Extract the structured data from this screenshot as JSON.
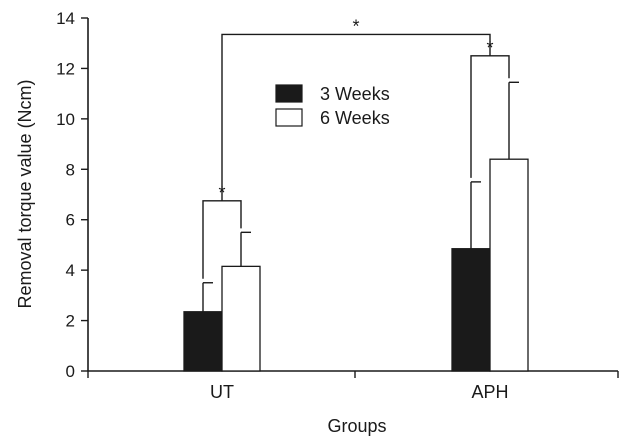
{
  "chart_data": {
    "type": "bar",
    "title": "",
    "xlabel": "Groups",
    "ylabel": "Removal torque value (Ncm)",
    "ylim": [
      0,
      14
    ],
    "yticks": [
      0,
      2,
      4,
      6,
      8,
      10,
      12,
      14
    ],
    "grid": false,
    "legend_position": "top-center",
    "categories": [
      "UT",
      "APH"
    ],
    "series": [
      {
        "name": "3 Weeks",
        "color": "#1a1a1a",
        "values": [
          2.35,
          4.85
        ],
        "errors": [
          1.15,
          2.65
        ]
      },
      {
        "name": "6 Weeks",
        "color": "#ffffff",
        "values": [
          4.15,
          8.4
        ],
        "errors": [
          1.35,
          3.05
        ]
      }
    ],
    "significance": [
      {
        "label": "*",
        "between": "UT 3 Weeks vs UT 6 Weeks"
      },
      {
        "label": "*",
        "between": "APH 3 Weeks vs APH 6 Weeks"
      },
      {
        "label": "*",
        "between": "UT vs APH"
      }
    ]
  }
}
